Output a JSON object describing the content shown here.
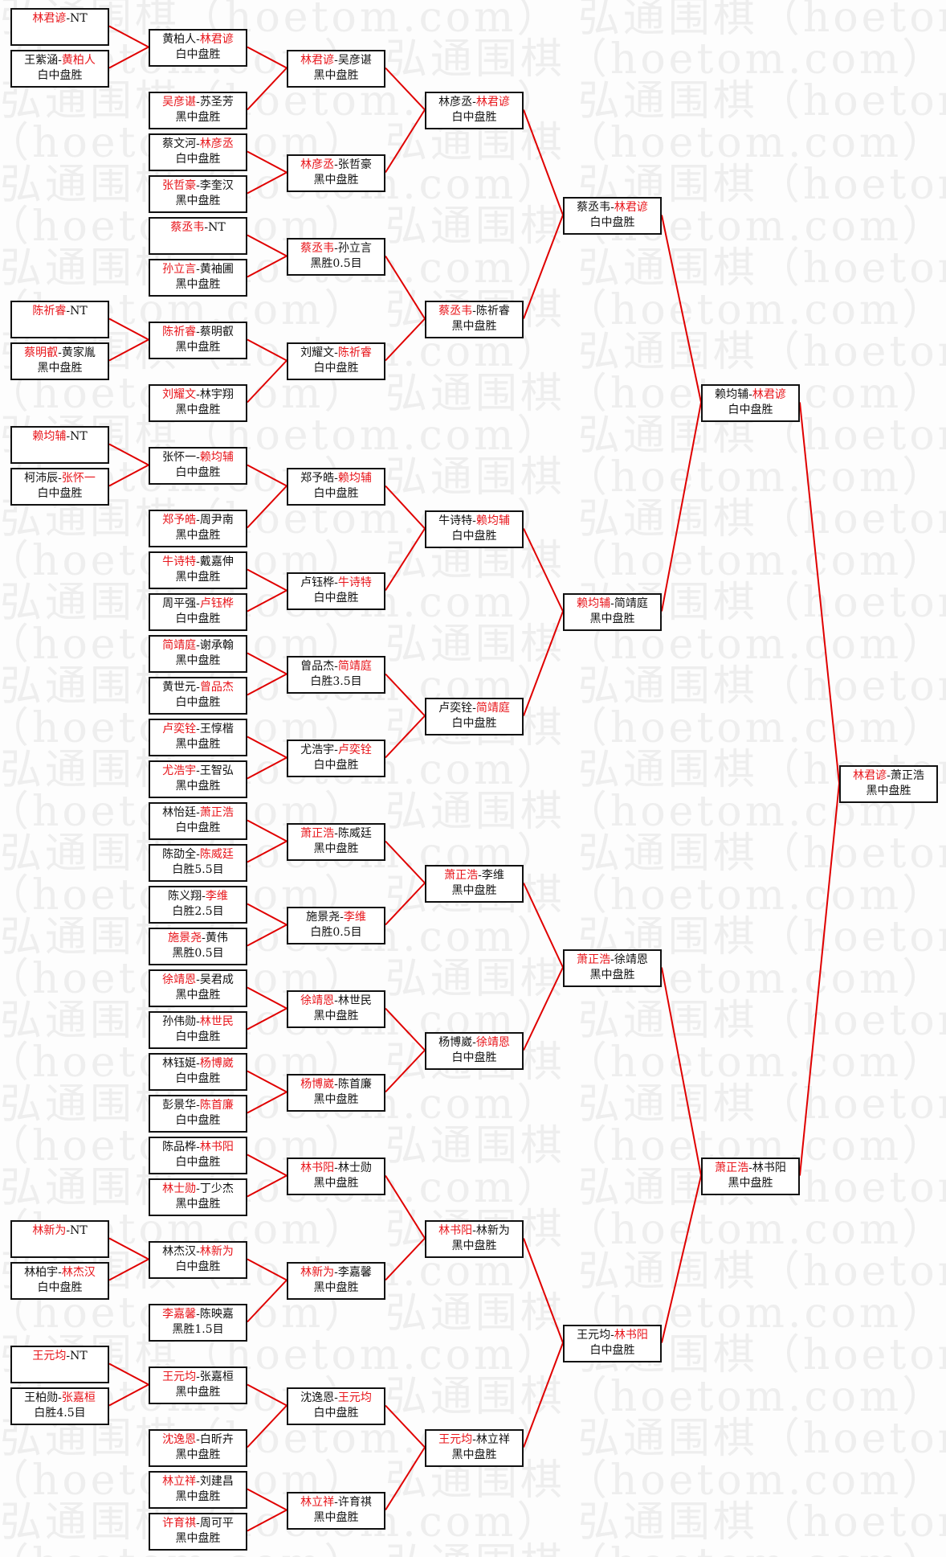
{
  "watermark": "弘通围棋（hoetom.com）",
  "colors": {
    "winner": "#e8141a",
    "connector": "#e00000",
    "border": "#111111"
  },
  "rounds": [
    [
      {
        "p1": "林君谚",
        "p2": "NT",
        "winner": 1,
        "result": ""
      },
      {
        "p1": "王紫涵",
        "p2": "黄柏人",
        "winner": 2,
        "result": "白中盘胜"
      },
      {
        "p1": "陈祈睿",
        "p2": "NT",
        "winner": 1,
        "result": ""
      },
      {
        "p1": "蔡明叡",
        "p2": "黄家胤",
        "winner": 1,
        "result": "黑中盘胜"
      },
      {
        "p1": "赖均辅",
        "p2": "NT",
        "winner": 1,
        "result": ""
      },
      {
        "p1": "柯沛辰",
        "p2": "张怀一",
        "winner": 2,
        "result": "白中盘胜"
      },
      {
        "p1": "林新为",
        "p2": "NT",
        "winner": 1,
        "result": ""
      },
      {
        "p1": "林柏宇",
        "p2": "林杰汉",
        "winner": 2,
        "result": "白中盘胜"
      },
      {
        "p1": "王元均",
        "p2": "NT",
        "winner": 1,
        "result": ""
      },
      {
        "p1": "王柏勋",
        "p2": "张嘉桓",
        "winner": 2,
        "result": "白胜4.5目"
      }
    ],
    [
      {
        "p1": "黄柏人",
        "p2": "林君谚",
        "winner": 2,
        "result": "白中盘胜"
      },
      {
        "p1": "吴彦谌",
        "p2": "苏圣芳",
        "winner": 1,
        "result": "黑中盘胜"
      },
      {
        "p1": "蔡文河",
        "p2": "林彦丞",
        "winner": 2,
        "result": "白中盘胜"
      },
      {
        "p1": "张哲豪",
        "p2": "李奎汉",
        "winner": 1,
        "result": "黑中盘胜"
      },
      {
        "p1": "蔡丞韦",
        "p2": "NT",
        "winner": 1,
        "result": ""
      },
      {
        "p1": "孙立言",
        "p2": "黄袖圃",
        "winner": 1,
        "result": "黑中盘胜"
      },
      {
        "p1": "陈祈睿",
        "p2": "蔡明叡",
        "winner": 1,
        "result": "黑中盘胜"
      },
      {
        "p1": "刘耀文",
        "p2": "林宇翔",
        "winner": 1,
        "result": "黑中盘胜"
      },
      {
        "p1": "张怀一",
        "p2": "赖均辅",
        "winner": 2,
        "result": "白中盘胜"
      },
      {
        "p1": "郑予皓",
        "p2": "周尹南",
        "winner": 1,
        "result": "黑中盘胜"
      },
      {
        "p1": "牛诗特",
        "p2": "戴嘉伸",
        "winner": 1,
        "result": "黑中盘胜"
      },
      {
        "p1": "周平强",
        "p2": "卢钰桦",
        "winner": 2,
        "result": "白中盘胜"
      },
      {
        "p1": "简靖庭",
        "p2": "谢承翰",
        "winner": 1,
        "result": "黑中盘胜"
      },
      {
        "p1": "黄世元",
        "p2": "曾品杰",
        "winner": 2,
        "result": "白中盘胜"
      },
      {
        "p1": "卢奕铨",
        "p2": "王惇楷",
        "winner": 1,
        "result": "黑中盘胜"
      },
      {
        "p1": "尤浩宇",
        "p2": "王智弘",
        "winner": 1,
        "result": "黑中盘胜"
      },
      {
        "p1": "林怡廷",
        "p2": "萧正浩",
        "winner": 2,
        "result": "白中盘胜"
      },
      {
        "p1": "陈劭全",
        "p2": "陈威廷",
        "winner": 2,
        "result": "白胜5.5目"
      },
      {
        "p1": "陈义翔",
        "p2": "李维",
        "winner": 2,
        "result": "白胜2.5目"
      },
      {
        "p1": "施景尧",
        "p2": "黄伟",
        "winner": 1,
        "result": "黑胜0.5目"
      },
      {
        "p1": "徐靖恩",
        "p2": "吴君成",
        "winner": 1,
        "result": "黑中盘胜"
      },
      {
        "p1": "孙伟勋",
        "p2": "林世民",
        "winner": 2,
        "result": "白中盘胜"
      },
      {
        "p1": "林钰娗",
        "p2": "杨博崴",
        "winner": 2,
        "result": "白中盘胜"
      },
      {
        "p1": "彭景华",
        "p2": "陈首廉",
        "winner": 2,
        "result": "白中盘胜"
      },
      {
        "p1": "陈品桦",
        "p2": "林书阳",
        "winner": 2,
        "result": "白中盘胜"
      },
      {
        "p1": "林士勋",
        "p2": "丁少杰",
        "winner": 1,
        "result": "黑中盘胜"
      },
      {
        "p1": "林杰汉",
        "p2": "林新为",
        "winner": 2,
        "result": "白中盘胜"
      },
      {
        "p1": "李嘉馨",
        "p2": "陈映嘉",
        "winner": 1,
        "result": "黑胜1.5目"
      },
      {
        "p1": "王元均",
        "p2": "张嘉桓",
        "winner": 1,
        "result": "黑中盘胜"
      },
      {
        "p1": "沈逸恩",
        "p2": "白昕卉",
        "winner": 1,
        "result": "黑中盘胜"
      },
      {
        "p1": "林立祥",
        "p2": "刘建昌",
        "winner": 1,
        "result": "黑中盘胜"
      },
      {
        "p1": "许育祺",
        "p2": "周可平",
        "winner": 1,
        "result": "黑中盘胜"
      }
    ],
    [
      {
        "p1": "林君谚",
        "p2": "吴彦谌",
        "winner": 1,
        "result": "黑中盘胜"
      },
      {
        "p1": "林彦丞",
        "p2": "张哲豪",
        "winner": 1,
        "result": "黑中盘胜"
      },
      {
        "p1": "蔡丞韦",
        "p2": "孙立言",
        "winner": 1,
        "result": "黑胜0.5目"
      },
      {
        "p1": "刘耀文",
        "p2": "陈祈睿",
        "winner": 2,
        "result": "白中盘胜"
      },
      {
        "p1": "郑予皓",
        "p2": "赖均辅",
        "winner": 2,
        "result": "白中盘胜"
      },
      {
        "p1": "卢钰桦",
        "p2": "牛诗特",
        "winner": 2,
        "result": "白中盘胜"
      },
      {
        "p1": "曾品杰",
        "p2": "简靖庭",
        "winner": 2,
        "result": "白胜3.5目"
      },
      {
        "p1": "尤浩宇",
        "p2": "卢奕铨",
        "winner": 2,
        "result": "白中盘胜"
      },
      {
        "p1": "萧正浩",
        "p2": "陈威廷",
        "winner": 1,
        "result": "黑中盘胜"
      },
      {
        "p1": "施景尧",
        "p2": "李维",
        "winner": 2,
        "result": "白胜0.5目"
      },
      {
        "p1": "徐靖恩",
        "p2": "林世民",
        "winner": 1,
        "result": "黑中盘胜"
      },
      {
        "p1": "杨博崴",
        "p2": "陈首廉",
        "winner": 1,
        "result": "黑中盘胜"
      },
      {
        "p1": "林书阳",
        "p2": "林士勋",
        "winner": 1,
        "result": "黑中盘胜"
      },
      {
        "p1": "林新为",
        "p2": "李嘉馨",
        "winner": 1,
        "result": "黑中盘胜"
      },
      {
        "p1": "沈逸恩",
        "p2": "王元均",
        "winner": 2,
        "result": "白中盘胜"
      },
      {
        "p1": "林立祥",
        "p2": "许育祺",
        "winner": 1,
        "result": "黑中盘胜"
      }
    ],
    [
      {
        "p1": "林彦丞",
        "p2": "林君谚",
        "winner": 2,
        "result": "白中盘胜"
      },
      {
        "p1": "蔡丞韦",
        "p2": "陈祈睿",
        "winner": 1,
        "result": "黑中盘胜"
      },
      {
        "p1": "牛诗特",
        "p2": "赖均辅",
        "winner": 2,
        "result": "白中盘胜"
      },
      {
        "p1": "卢奕铨",
        "p2": "简靖庭",
        "winner": 2,
        "result": "白中盘胜"
      },
      {
        "p1": "萧正浩",
        "p2": "李维",
        "winner": 1,
        "result": "黑中盘胜"
      },
      {
        "p1": "杨博崴",
        "p2": "徐靖恩",
        "winner": 2,
        "result": "白中盘胜"
      },
      {
        "p1": "林书阳",
        "p2": "林新为",
        "winner": 1,
        "result": "黑中盘胜"
      },
      {
        "p1": "王元均",
        "p2": "林立祥",
        "winner": 1,
        "result": "黑中盘胜"
      }
    ],
    [
      {
        "p1": "蔡丞韦",
        "p2": "林君谚",
        "winner": 2,
        "result": "白中盘胜"
      },
      {
        "p1": "赖均辅",
        "p2": "简靖庭",
        "winner": 1,
        "result": "黑中盘胜"
      },
      {
        "p1": "萧正浩",
        "p2": "徐靖恩",
        "winner": 1,
        "result": "黑中盘胜"
      },
      {
        "p1": "王元均",
        "p2": "林书阳",
        "winner": 2,
        "result": "白中盘胜"
      }
    ],
    [
      {
        "p1": "赖均辅",
        "p2": "林君谚",
        "winner": 2,
        "result": "白中盘胜"
      },
      {
        "p1": "萧正浩",
        "p2": "林书阳",
        "winner": 1,
        "result": "黑中盘胜"
      }
    ],
    [
      {
        "p1": "林君谚",
        "p2": "萧正浩",
        "winner": 1,
        "result": "黑中盘胜"
      }
    ]
  ]
}
